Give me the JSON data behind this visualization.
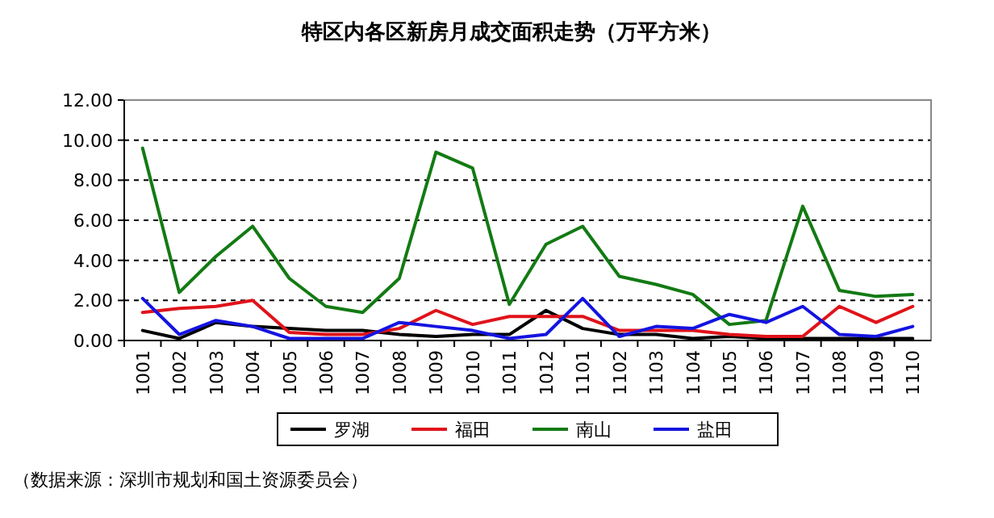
{
  "chart_data": {
    "type": "line",
    "title": "特区内各区新房月成交面积走势（万平方米）",
    "categories": [
      "1001",
      "1002",
      "1003",
      "1004",
      "1005",
      "1006",
      "1007",
      "1008",
      "1009",
      "1010",
      "1011",
      "1012",
      "1101",
      "1102",
      "1103",
      "1104",
      "1105",
      "1106",
      "1107",
      "1108",
      "1109",
      "1110"
    ],
    "series": [
      {
        "name": "罗湖",
        "color": "#000000",
        "values": [
          0.5,
          0.1,
          0.9,
          0.7,
          0.6,
          0.5,
          0.5,
          0.3,
          0.2,
          0.3,
          0.3,
          1.5,
          0.6,
          0.3,
          0.3,
          0.1,
          0.2,
          0.1,
          0.1,
          0.1,
          0.1,
          0.1
        ]
      },
      {
        "name": "福田",
        "color": "#e0131a",
        "values": [
          1.4,
          1.6,
          1.7,
          2.0,
          0.4,
          0.3,
          0.3,
          0.6,
          1.5,
          0.8,
          1.2,
          1.2,
          1.2,
          0.5,
          0.5,
          0.5,
          0.3,
          0.2,
          0.2,
          1.7,
          0.9,
          1.7
        ]
      },
      {
        "name": "南山",
        "color": "#137a13",
        "values": [
          9.6,
          2.4,
          4.2,
          5.7,
          3.1,
          1.7,
          1.4,
          3.1,
          9.4,
          8.6,
          1.8,
          4.8,
          5.7,
          3.2,
          2.8,
          2.3,
          0.8,
          1.0,
          6.7,
          2.5,
          2.2,
          2.3
        ]
      },
      {
        "name": "盐田",
        "color": "#1414e0",
        "values": [
          2.1,
          0.3,
          1.0,
          0.7,
          0.1,
          0.1,
          0.1,
          0.9,
          0.7,
          0.5,
          0.1,
          0.3,
          2.1,
          0.2,
          0.7,
          0.6,
          1.3,
          0.9,
          1.7,
          0.3,
          0.2,
          0.7
        ]
      }
    ],
    "ylim": [
      0,
      12
    ],
    "yticks": [
      {
        "value": 0,
        "label": "0.00"
      },
      {
        "value": 2,
        "label": "2.00"
      },
      {
        "value": 4,
        "label": "4.00"
      },
      {
        "value": 6,
        "label": "6.00"
      },
      {
        "value": 8,
        "label": "8.00"
      },
      {
        "value": 10,
        "label": "10.00"
      },
      {
        "value": 12,
        "label": "12.00"
      }
    ],
    "grid": "y",
    "legend": "bottom",
    "annotations": [
      "（数据来源：深圳市规划和国土资源委员会）"
    ]
  }
}
